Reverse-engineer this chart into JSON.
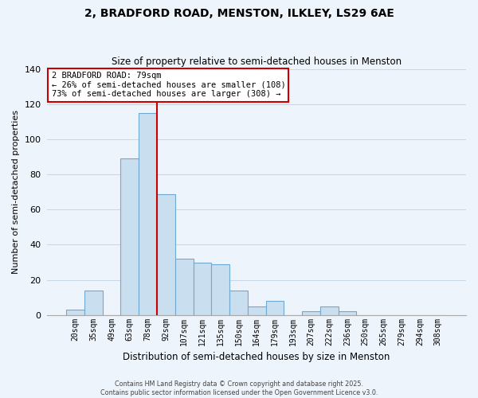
{
  "title1": "2, BRADFORD ROAD, MENSTON, ILKLEY, LS29 6AE",
  "title2": "Size of property relative to semi-detached houses in Menston",
  "xlabel": "Distribution of semi-detached houses by size in Menston",
  "ylabel": "Number of semi-detached properties",
  "bar_labels": [
    "20sqm",
    "35sqm",
    "49sqm",
    "63sqm",
    "78sqm",
    "92sqm",
    "107sqm",
    "121sqm",
    "135sqm",
    "150sqm",
    "164sqm",
    "179sqm",
    "193sqm",
    "207sqm",
    "222sqm",
    "236sqm",
    "250sqm",
    "265sqm",
    "279sqm",
    "294sqm",
    "308sqm"
  ],
  "bar_values": [
    3,
    14,
    0,
    89,
    115,
    69,
    32,
    30,
    29,
    14,
    5,
    8,
    0,
    2,
    5,
    2,
    0,
    0,
    0,
    0,
    0
  ],
  "bar_color": "#c9dff0",
  "bar_edge_color": "#6fa8d0",
  "bg_color": "#eef4fb",
  "grid_color": "#c8d8e8",
  "vline_x_index": 4,
  "vline_color": "#cc0000",
  "annotation_title": "2 BRADFORD ROAD: 79sqm",
  "annotation_line1": "← 26% of semi-detached houses are smaller (108)",
  "annotation_line2": "73% of semi-detached houses are larger (308) →",
  "footer1": "Contains HM Land Registry data © Crown copyright and database right 2025.",
  "footer2": "Contains public sector information licensed under the Open Government Licence v3.0.",
  "ylim": [
    0,
    140
  ],
  "yticks": [
    0,
    20,
    40,
    60,
    80,
    100,
    120,
    140
  ]
}
